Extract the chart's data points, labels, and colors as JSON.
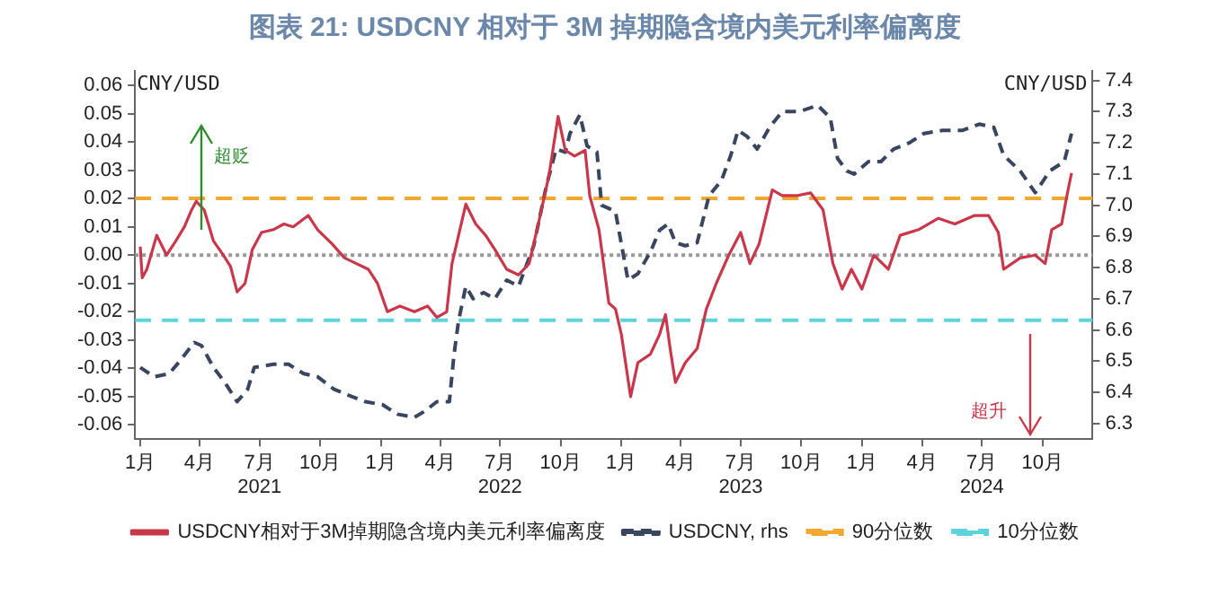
{
  "chart_data": {
    "type": "line",
    "title": "图表 21: USDCNY 相对于 3M 掉期隐含境内美元利率偏离度",
    "ylabel": "CNY/USD",
    "y2label": "CNY/USD",
    "annotations": [
      "超贬",
      "超升"
    ],
    "xlim": [
      "2020-12-24",
      "2024-12-16"
    ],
    "xticks": [
      {
        "value": "2021-01-01",
        "label": "1月"
      },
      {
        "value": "2021-04-01",
        "label": "4月"
      },
      {
        "value": "2021-07-01",
        "label": "7月\n2021"
      },
      {
        "value": "2021-10-01",
        "label": "10月"
      },
      {
        "value": "2022-01-01",
        "label": "1月"
      },
      {
        "value": "2022-04-01",
        "label": "4月"
      },
      {
        "value": "2022-07-01",
        "label": "7月\n2022"
      },
      {
        "value": "2022-10-01",
        "label": "10月"
      },
      {
        "value": "2023-01-01",
        "label": "1月"
      },
      {
        "value": "2023-04-01",
        "label": "4月"
      },
      {
        "value": "2023-07-01",
        "label": "7月\n2023"
      },
      {
        "value": "2023-10-01",
        "label": "10月"
      },
      {
        "value": "2024-01-01",
        "label": "1月"
      },
      {
        "value": "2024-04-01",
        "label": "4月"
      },
      {
        "value": "2024-07-01",
        "label": "7月\n2024"
      },
      {
        "value": "2024-10-01",
        "label": "10月"
      }
    ],
    "ylim": [
      -0.065,
      0.065
    ],
    "yticks": [
      {
        "value": -0.06,
        "label": "-0.06"
      },
      {
        "value": -0.05,
        "label": "-0.05"
      },
      {
        "value": -0.04,
        "label": "-0.04"
      },
      {
        "value": -0.03,
        "label": "-0.03"
      },
      {
        "value": -0.02,
        "label": "-0.02"
      },
      {
        "value": -0.01,
        "label": "-0.01"
      },
      {
        "value": 0,
        "label": "0.00"
      },
      {
        "value": 0.01,
        "label": "0.01"
      },
      {
        "value": 0.02,
        "label": "0.02"
      },
      {
        "value": 0.03,
        "label": "0.03"
      },
      {
        "value": 0.04,
        "label": "0.04"
      },
      {
        "value": 0.05,
        "label": "0.05"
      },
      {
        "value": 0.06,
        "label": "0.06"
      }
    ],
    "y2lim": [
      6.25,
      7.43
    ],
    "y2ticks": [
      6.3,
      6.4,
      6.5,
      6.6,
      6.7,
      6.8,
      6.9,
      {
        "value": 7,
        "label": "7.0"
      },
      7.1,
      7.2,
      7.3,
      7.4
    ],
    "grid": false,
    "legend": "bottom",
    "marker": "none",
    "series": [
      {
        "name": "USDCNY相对于3M掉期隐含境内美元利率偏离度",
        "color": "#c8374a",
        "line_style": "solid",
        "x": [
          "2021-01-01",
          "2021-01-04",
          "2021-01-11",
          "2021-01-26",
          "2021-02-10",
          "2021-02-24",
          "2021-03-09",
          "2021-03-20",
          "2021-03-27",
          "2021-04-08",
          "2021-04-22",
          "2021-05-07",
          "2021-05-18",
          "2021-05-28",
          "2021-06-09",
          "2021-06-20",
          "2021-07-04",
          "2021-07-22",
          "2021-08-07",
          "2021-08-21",
          "2021-09-13",
          "2021-09-27",
          "2021-10-19",
          "2021-11-07",
          "2021-11-25",
          "2021-12-13",
          "2021-12-27",
          "2022-01-11",
          "2022-01-30",
          "2022-02-21",
          "2022-03-13",
          "2022-03-27",
          "2022-04-11",
          "2022-04-19",
          "2022-04-29",
          "2022-05-10",
          "2022-05-25",
          "2022-06-09",
          "2022-06-23",
          "2022-07-11",
          "2022-07-29",
          "2022-08-14",
          "2022-08-28",
          "2022-09-13",
          "2022-09-27",
          "2022-10-08",
          "2022-10-22",
          "2022-11-07",
          "2022-11-14",
          "2022-11-28",
          "2022-12-13",
          "2022-12-23",
          "2023-01-01",
          "2023-01-15",
          "2023-01-26",
          "2023-02-14",
          "2023-02-28",
          "2023-03-09",
          "2023-03-16",
          "2023-03-24",
          "2023-04-08",
          "2023-04-26",
          "2023-05-10",
          "2023-05-25",
          "2023-06-13",
          "2023-07-01",
          "2023-07-15",
          "2023-07-29",
          "2023-08-18",
          "2023-09-02",
          "2023-09-24",
          "2023-10-15",
          "2023-11-03",
          "2023-11-18",
          "2023-12-02",
          "2023-12-16",
          "2024-01-01",
          "2024-01-19",
          "2024-02-10",
          "2024-02-28",
          "2024-03-27",
          "2024-04-26",
          "2024-05-21",
          "2024-06-20",
          "2024-07-11",
          "2024-07-26",
          "2024-08-03",
          "2024-08-28",
          "2024-09-20",
          "2024-10-05",
          "2024-10-15",
          "2024-10-30",
          "2024-11-07",
          "2024-11-14"
        ],
        "values": [
          0.003,
          -0.008,
          -0.005,
          0.007,
          0.0,
          0.005,
          0.01,
          0.016,
          0.019,
          0.016,
          0.005,
          0.0,
          -0.004,
          -0.013,
          -0.01,
          0.002,
          0.008,
          0.009,
          0.011,
          0.01,
          0.014,
          0.009,
          0.004,
          -0.001,
          -0.003,
          -0.005,
          -0.01,
          -0.02,
          -0.018,
          -0.02,
          -0.018,
          -0.022,
          -0.02,
          -0.003,
          0.007,
          0.018,
          0.011,
          0.007,
          0.002,
          -0.005,
          -0.007,
          -0.003,
          0.011,
          0.028,
          0.049,
          0.037,
          0.035,
          0.037,
          0.021,
          0.009,
          -0.017,
          -0.019,
          -0.028,
          -0.05,
          -0.038,
          -0.035,
          -0.028,
          -0.021,
          -0.033,
          -0.045,
          -0.038,
          -0.033,
          -0.019,
          -0.01,
          0.0,
          0.008,
          -0.003,
          0.004,
          0.023,
          0.021,
          0.021,
          0.022,
          0.016,
          -0.003,
          -0.012,
          -0.005,
          -0.012,
          0.0,
          -0.005,
          0.007,
          0.009,
          0.013,
          0.011,
          0.014,
          0.014,
          0.008,
          -0.005,
          -0.001,
          0.0,
          -0.003,
          0.009,
          0.011,
          0.021,
          0.029
        ]
      },
      {
        "name": "USDCNY, rhs",
        "color": "#3a4660",
        "axis": "y2",
        "line_style": "dashed",
        "x": [
          "2021-01-01",
          "2021-01-22",
          "2021-02-14",
          "2021-03-02",
          "2021-03-24",
          "2021-04-04",
          "2021-04-22",
          "2021-05-10",
          "2021-05-28",
          "2021-06-13",
          "2021-06-23",
          "2021-07-22",
          "2021-08-14",
          "2021-09-06",
          "2021-09-27",
          "2021-10-22",
          "2021-11-14",
          "2021-12-09",
          "2022-01-04",
          "2022-01-26",
          "2022-02-21",
          "2022-03-09",
          "2022-03-27",
          "2022-04-15",
          "2022-04-22",
          "2022-04-29",
          "2022-05-10",
          "2022-05-21",
          "2022-06-06",
          "2022-06-23",
          "2022-07-11",
          "2022-07-29",
          "2022-08-21",
          "2022-09-09",
          "2022-09-24",
          "2022-10-08",
          "2022-10-15",
          "2022-10-30",
          "2022-11-10",
          "2022-11-25",
          "2022-12-02",
          "2022-12-23",
          "2023-01-11",
          "2023-01-26",
          "2023-02-14",
          "2023-02-28",
          "2023-03-13",
          "2023-03-24",
          "2023-04-08",
          "2023-04-26",
          "2023-05-14",
          "2023-06-02",
          "2023-06-16",
          "2023-06-27",
          "2023-07-11",
          "2023-07-26",
          "2023-08-14",
          "2023-09-02",
          "2023-09-27",
          "2023-10-26",
          "2023-11-14",
          "2023-11-25",
          "2023-12-09",
          "2023-12-20",
          "2024-01-11",
          "2024-01-30",
          "2024-02-18",
          "2024-03-13",
          "2024-04-04",
          "2024-05-03",
          "2024-06-02",
          "2024-06-27",
          "2024-07-19",
          "2024-08-03",
          "2024-08-28",
          "2024-09-20",
          "2024-10-12",
          "2024-11-03",
          "2024-11-14"
        ],
        "values": [
          6.48,
          6.45,
          6.46,
          6.5,
          6.56,
          6.55,
          6.48,
          6.43,
          6.37,
          6.41,
          6.48,
          6.49,
          6.49,
          6.46,
          6.45,
          6.41,
          6.39,
          6.37,
          6.36,
          6.33,
          6.32,
          6.34,
          6.37,
          6.37,
          6.52,
          6.63,
          6.74,
          6.7,
          6.72,
          6.7,
          6.76,
          6.74,
          6.87,
          7.06,
          7.18,
          7.17,
          7.23,
          7.29,
          7.19,
          7.17,
          7.0,
          6.98,
          6.76,
          6.78,
          6.85,
          6.92,
          6.94,
          6.88,
          6.87,
          6.88,
          7.03,
          7.08,
          7.16,
          7.24,
          7.22,
          7.18,
          7.25,
          7.3,
          7.3,
          7.32,
          7.28,
          7.15,
          7.11,
          7.1,
          7.14,
          7.14,
          7.18,
          7.2,
          7.23,
          7.24,
          7.24,
          7.26,
          7.25,
          7.16,
          7.11,
          7.04,
          7.11,
          7.14,
          7.23
        ]
      }
    ],
    "ref_lines": [
      {
        "axis": "y",
        "value": 0.02,
        "label": "90分位数",
        "color": "#f0a830",
        "line_style": "dashed"
      },
      {
        "axis": "y",
        "value": -0.023,
        "label": "10分位数",
        "color": "#5fd3dc",
        "line_style": "dashed"
      },
      {
        "axis": "y",
        "value": 0,
        "color": "#9a9a9a",
        "line_style": "dotted"
      }
    ]
  }
}
